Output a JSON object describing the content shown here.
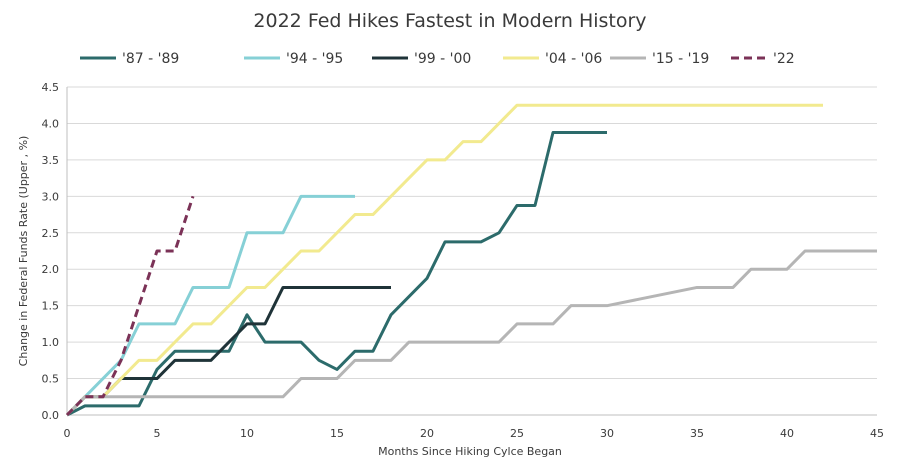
{
  "chart_data": {
    "type": "line",
    "title": "2022 Fed Hikes Fastest in Modern History",
    "xlabel": "Months Since Hiking Cylce Began",
    "ylabel": "Change in Federal Funds Rate (Upper , %)",
    "xlim": [
      0,
      45
    ],
    "ylim": [
      0,
      4.5
    ],
    "xticks": [
      0,
      5,
      10,
      15,
      20,
      25,
      30,
      35,
      40,
      45
    ],
    "yticks": [
      0.0,
      0.5,
      1.0,
      1.5,
      2.0,
      2.5,
      3.0,
      3.5,
      4.0,
      4.5
    ],
    "yticks_labels": [
      "0.0",
      "0.5",
      "1.0",
      "1.5",
      "2.0",
      "2.5",
      "3.0",
      "3.5",
      "4.0",
      "4.5"
    ],
    "xticks_labels": [
      "0",
      "5",
      "10",
      "15",
      "20",
      "25",
      "30",
      "35",
      "40",
      "45"
    ],
    "grid": "horizontal",
    "legend_position": "top",
    "series": [
      {
        "name": "'87 - '89",
        "color": "#2c6b6b",
        "dash": false,
        "points": [
          [
            0,
            0
          ],
          [
            1,
            0.125
          ],
          [
            2,
            0.125
          ],
          [
            3,
            0.125
          ],
          [
            4,
            0.125
          ],
          [
            5,
            0.625
          ],
          [
            6,
            0.875
          ],
          [
            7,
            0.875
          ],
          [
            8,
            0.875
          ],
          [
            9,
            0.875
          ],
          [
            10,
            1.375
          ],
          [
            11,
            1.0
          ],
          [
            12,
            1.0
          ],
          [
            13,
            1.0
          ],
          [
            14,
            0.75
          ],
          [
            15,
            0.625
          ],
          [
            16,
            0.875
          ],
          [
            17,
            0.875
          ],
          [
            18,
            1.375
          ],
          [
            19,
            1.625
          ],
          [
            20,
            1.875
          ],
          [
            21,
            2.375
          ],
          [
            22,
            2.375
          ],
          [
            23,
            2.375
          ],
          [
            24,
            2.5
          ],
          [
            25,
            2.875
          ],
          [
            26,
            2.875
          ],
          [
            27,
            3.875
          ],
          [
            28,
            3.875
          ],
          [
            29,
            3.875
          ],
          [
            30,
            3.875
          ]
        ]
      },
      {
        "name": "'94 - '95",
        "color": "#86d0d6",
        "dash": false,
        "points": [
          [
            0,
            0
          ],
          [
            1,
            0.25
          ],
          [
            2,
            0.5
          ],
          [
            3,
            0.75
          ],
          [
            4,
            1.25
          ],
          [
            5,
            1.25
          ],
          [
            6,
            1.25
          ],
          [
            7,
            1.75
          ],
          [
            8,
            1.75
          ],
          [
            9,
            1.75
          ],
          [
            10,
            2.5
          ],
          [
            11,
            2.5
          ],
          [
            12,
            2.5
          ],
          [
            13,
            3.0
          ],
          [
            14,
            3.0
          ],
          [
            15,
            3.0
          ],
          [
            16,
            3.0
          ]
        ]
      },
      {
        "name": "'99 - '00",
        "color": "#1f3338",
        "dash": false,
        "points": [
          [
            0,
            0
          ],
          [
            1,
            0.25
          ],
          [
            2,
            0.25
          ],
          [
            3,
            0.5
          ],
          [
            4,
            0.5
          ],
          [
            5,
            0.5
          ],
          [
            6,
            0.75
          ],
          [
            7,
            0.75
          ],
          [
            8,
            0.75
          ],
          [
            9,
            1.0
          ],
          [
            10,
            1.25
          ],
          [
            11,
            1.25
          ],
          [
            12,
            1.75
          ],
          [
            13,
            1.75
          ],
          [
            14,
            1.75
          ],
          [
            15,
            1.75
          ],
          [
            16,
            1.75
          ],
          [
            17,
            1.75
          ],
          [
            18,
            1.75
          ]
        ]
      },
      {
        "name": "'04 - '06",
        "color": "#f2ea8f",
        "dash": false,
        "points": [
          [
            0,
            0
          ],
          [
            1,
            0.25
          ],
          [
            2,
            0.25
          ],
          [
            3,
            0.5
          ],
          [
            4,
            0.75
          ],
          [
            5,
            0.75
          ],
          [
            6,
            1.0
          ],
          [
            7,
            1.25
          ],
          [
            8,
            1.25
          ],
          [
            9,
            1.5
          ],
          [
            10,
            1.75
          ],
          [
            11,
            1.75
          ],
          [
            12,
            2.0
          ],
          [
            13,
            2.25
          ],
          [
            14,
            2.25
          ],
          [
            15,
            2.5
          ],
          [
            16,
            2.75
          ],
          [
            17,
            2.75
          ],
          [
            18,
            3.0
          ],
          [
            19,
            3.25
          ],
          [
            20,
            3.5
          ],
          [
            21,
            3.5
          ],
          [
            22,
            3.75
          ],
          [
            23,
            3.75
          ],
          [
            24,
            4.0
          ],
          [
            25,
            4.25
          ],
          [
            26,
            4.25
          ],
          [
            27,
            4.25
          ],
          [
            28,
            4.25
          ],
          [
            29,
            4.25
          ],
          [
            30,
            4.25
          ],
          [
            31,
            4.25
          ],
          [
            32,
            4.25
          ],
          [
            33,
            4.25
          ],
          [
            34,
            4.25
          ],
          [
            35,
            4.25
          ],
          [
            36,
            4.25
          ],
          [
            37,
            4.25
          ],
          [
            38,
            4.25
          ],
          [
            39,
            4.25
          ],
          [
            40,
            4.25
          ],
          [
            41,
            4.25
          ],
          [
            42,
            4.25
          ]
        ]
      },
      {
        "name": "'15 - '19",
        "color": "#b5b5b5",
        "dash": false,
        "points": [
          [
            0,
            0
          ],
          [
            1,
            0.25
          ],
          [
            2,
            0.25
          ],
          [
            3,
            0.25
          ],
          [
            4,
            0.25
          ],
          [
            5,
            0.25
          ],
          [
            6,
            0.25
          ],
          [
            7,
            0.25
          ],
          [
            8,
            0.25
          ],
          [
            9,
            0.25
          ],
          [
            10,
            0.25
          ],
          [
            11,
            0.25
          ],
          [
            12,
            0.25
          ],
          [
            13,
            0.5
          ],
          [
            14,
            0.5
          ],
          [
            15,
            0.5
          ],
          [
            16,
            0.75
          ],
          [
            17,
            0.75
          ],
          [
            18,
            0.75
          ],
          [
            19,
            1.0
          ],
          [
            20,
            1.0
          ],
          [
            21,
            1.0
          ],
          [
            22,
            1.0
          ],
          [
            23,
            1.0
          ],
          [
            24,
            1.0
          ],
          [
            25,
            1.25
          ],
          [
            26,
            1.25
          ],
          [
            27,
            1.25
          ],
          [
            28,
            1.5
          ],
          [
            29,
            1.5
          ],
          [
            30,
            1.5
          ],
          [
            35,
            1.75
          ],
          [
            36,
            1.75
          ],
          [
            37,
            1.75
          ],
          [
            38,
            2.0
          ],
          [
            39,
            2.0
          ],
          [
            40,
            2.0
          ],
          [
            41,
            2.25
          ],
          [
            42,
            2.25
          ],
          [
            43,
            2.25
          ],
          [
            44,
            2.25
          ],
          [
            45,
            2.25
          ]
        ]
      },
      {
        "name": "'22",
        "color": "#7b3257",
        "dash": true,
        "points": [
          [
            0,
            0
          ],
          [
            1,
            0.25
          ],
          [
            2,
            0.25
          ],
          [
            3,
            0.75
          ],
          [
            4,
            1.5
          ],
          [
            5,
            2.25
          ],
          [
            6,
            2.25
          ],
          [
            7,
            3.0
          ]
        ]
      }
    ]
  }
}
